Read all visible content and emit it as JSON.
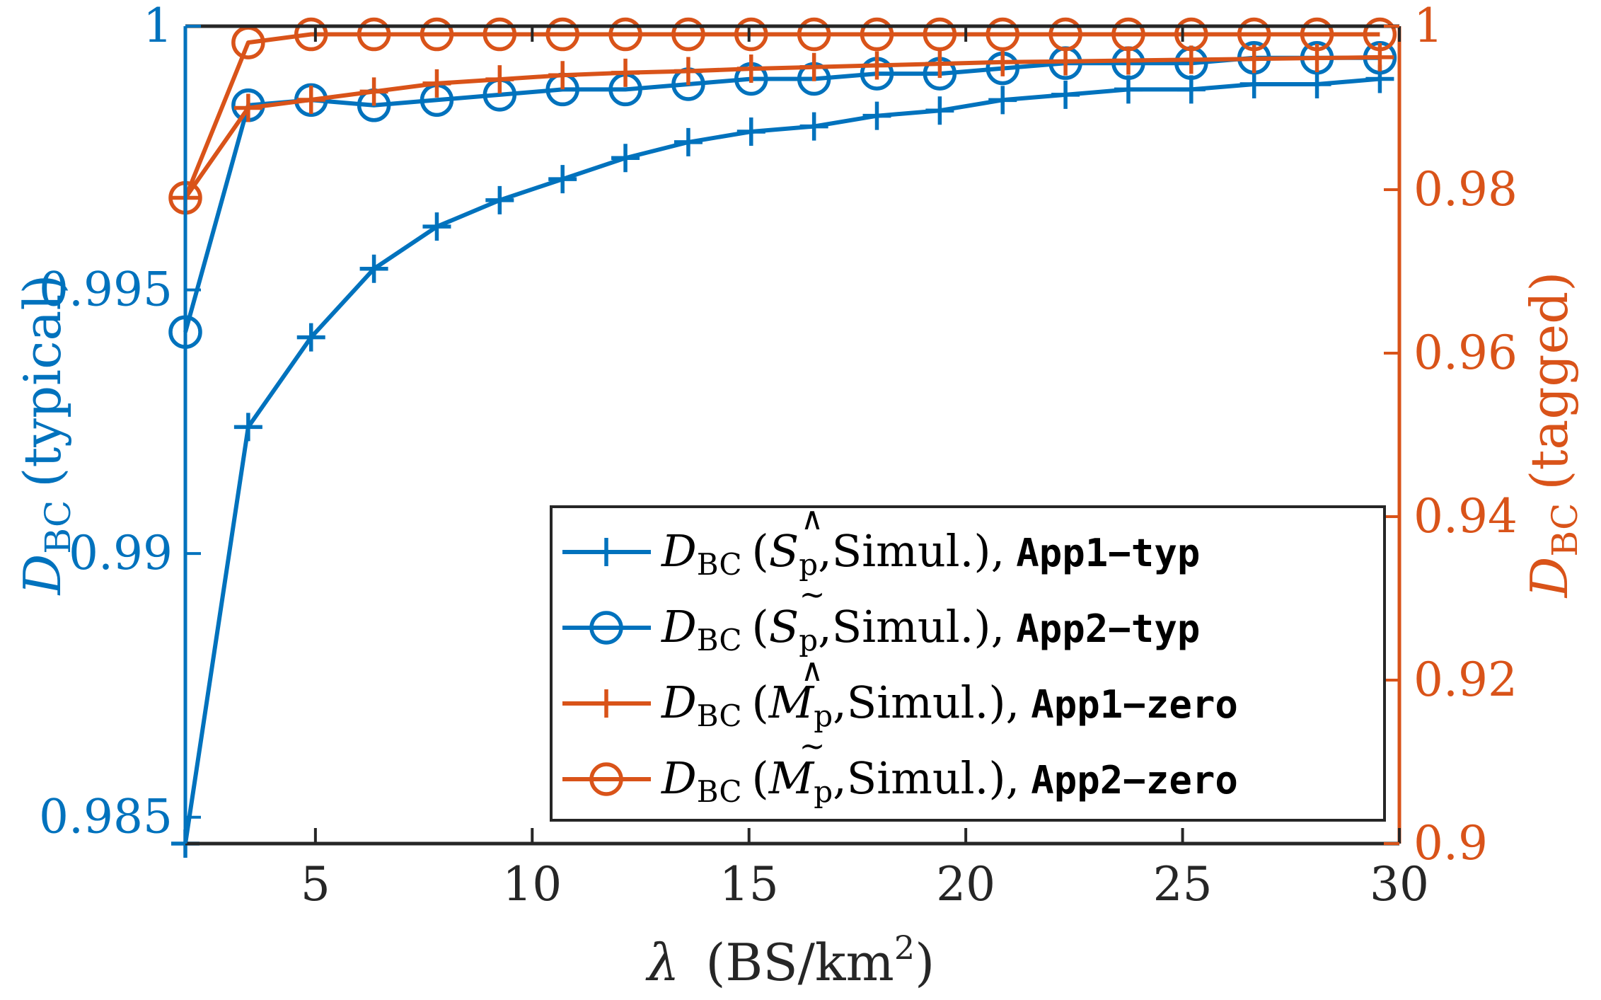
{
  "chart_data": {
    "type": "line",
    "x": [
      2,
      3.45,
      4.9,
      6.35,
      7.8,
      9.25,
      10.7,
      12.15,
      13.6,
      15.05,
      16.5,
      17.95,
      19.4,
      20.85,
      22.3,
      23.75,
      25.2,
      26.65,
      28.1,
      29.55
    ],
    "xlabel_symbol": "λ",
    "xlabel_unit": "(BS/km",
    "xlabel_sup": "2",
    "xlabel_close": ")",
    "xlim": [
      2,
      30
    ],
    "xticks": [
      5,
      10,
      15,
      20,
      25,
      30
    ],
    "left_axis": {
      "label_main": "D",
      "label_sub": "BC",
      "label_rest": "(typical)",
      "ylim": [
        0.9845,
        1
      ],
      "ticks": [
        0.985,
        0.99,
        0.995,
        1
      ],
      "tick_labels": [
        "0.985",
        "0.99",
        "0.995",
        "1"
      ],
      "color": "#0072BD"
    },
    "right_axis": {
      "label_main": "D",
      "label_sub": "BC",
      "label_rest": "(tagged)",
      "ylim": [
        0.9,
        1
      ],
      "ticks": [
        0.9,
        0.92,
        0.94,
        0.96,
        0.98,
        1
      ],
      "tick_labels": [
        "0.9",
        "0.92",
        "0.94",
        "0.96",
        "0.98",
        "1"
      ],
      "color": "#D95319"
    },
    "series": [
      {
        "name": "App1-typ",
        "axis": "left",
        "marker": "plus",
        "color": "#0072BD",
        "legend_label": "D_BC (Ŝp,Simul.), App1−typ",
        "values": [
          0.9845,
          0.9924,
          0.9941,
          0.9954,
          0.9962,
          0.9967,
          0.9971,
          0.9975,
          0.9978,
          0.998,
          0.9981,
          0.9983,
          0.9984,
          0.9986,
          0.9987,
          0.9988,
          0.9988,
          0.9989,
          0.9989,
          0.999
        ]
      },
      {
        "name": "App2-typ",
        "axis": "left",
        "marker": "circle",
        "color": "#0072BD",
        "legend_label": "D_BC (S̃p,Simul.), App2−typ",
        "values": [
          0.9942,
          0.9985,
          0.9986,
          0.9985,
          0.9986,
          0.9987,
          0.9988,
          0.9988,
          0.9989,
          0.999,
          0.999,
          0.9991,
          0.9991,
          0.9992,
          0.9993,
          0.9993,
          0.9993,
          0.9994,
          0.9994,
          0.9994
        ]
      },
      {
        "name": "App1-zero",
        "axis": "right",
        "marker": "plus",
        "color": "#D95319",
        "legend_label": "D_BC (M̂p,Simul.), App1−zero",
        "values": [
          0.979,
          0.99,
          0.991,
          0.992,
          0.993,
          0.9935,
          0.994,
          0.9943,
          0.9945,
          0.9948,
          0.995,
          0.9952,
          0.9954,
          0.9956,
          0.9957,
          0.9958,
          0.9959,
          0.996,
          0.9961,
          0.9962
        ]
      },
      {
        "name": "App2-zero",
        "axis": "right",
        "marker": "circle",
        "color": "#D95319",
        "legend_label": "D_BC (M̃p,Simul.), App2−zero",
        "values": [
          0.979,
          0.998,
          0.999,
          0.999,
          0.999,
          0.999,
          0.999,
          0.999,
          0.999,
          0.999,
          0.999,
          0.999,
          0.999,
          0.999,
          0.999,
          0.999,
          0.999,
          0.999,
          0.999,
          0.999
        ]
      }
    ],
    "legend": {
      "position": "bottom-right",
      "entries": [
        {
          "d": "D",
          "sub": "BC",
          "open": "(",
          "hat": "∧",
          "sym": "S",
          "symsub": "p",
          "rest": ",Simul.),",
          "tag": "App1−typ"
        },
        {
          "d": "D",
          "sub": "BC",
          "open": "(",
          "hat": "∼",
          "sym": "S",
          "symsub": "p",
          "rest": ",Simul.),",
          "tag": "App2−typ"
        },
        {
          "d": "D",
          "sub": "BC",
          "open": "(",
          "hat": "∧",
          "sym": "M",
          "symsub": "p",
          "rest": ",Simul.),",
          "tag": "App1−zero"
        },
        {
          "d": "D",
          "sub": "BC",
          "open": "(",
          "hat": "∼",
          "sym": "M",
          "symsub": "p",
          "rest": ",Simul.),",
          "tag": "App2−zero"
        }
      ]
    }
  }
}
